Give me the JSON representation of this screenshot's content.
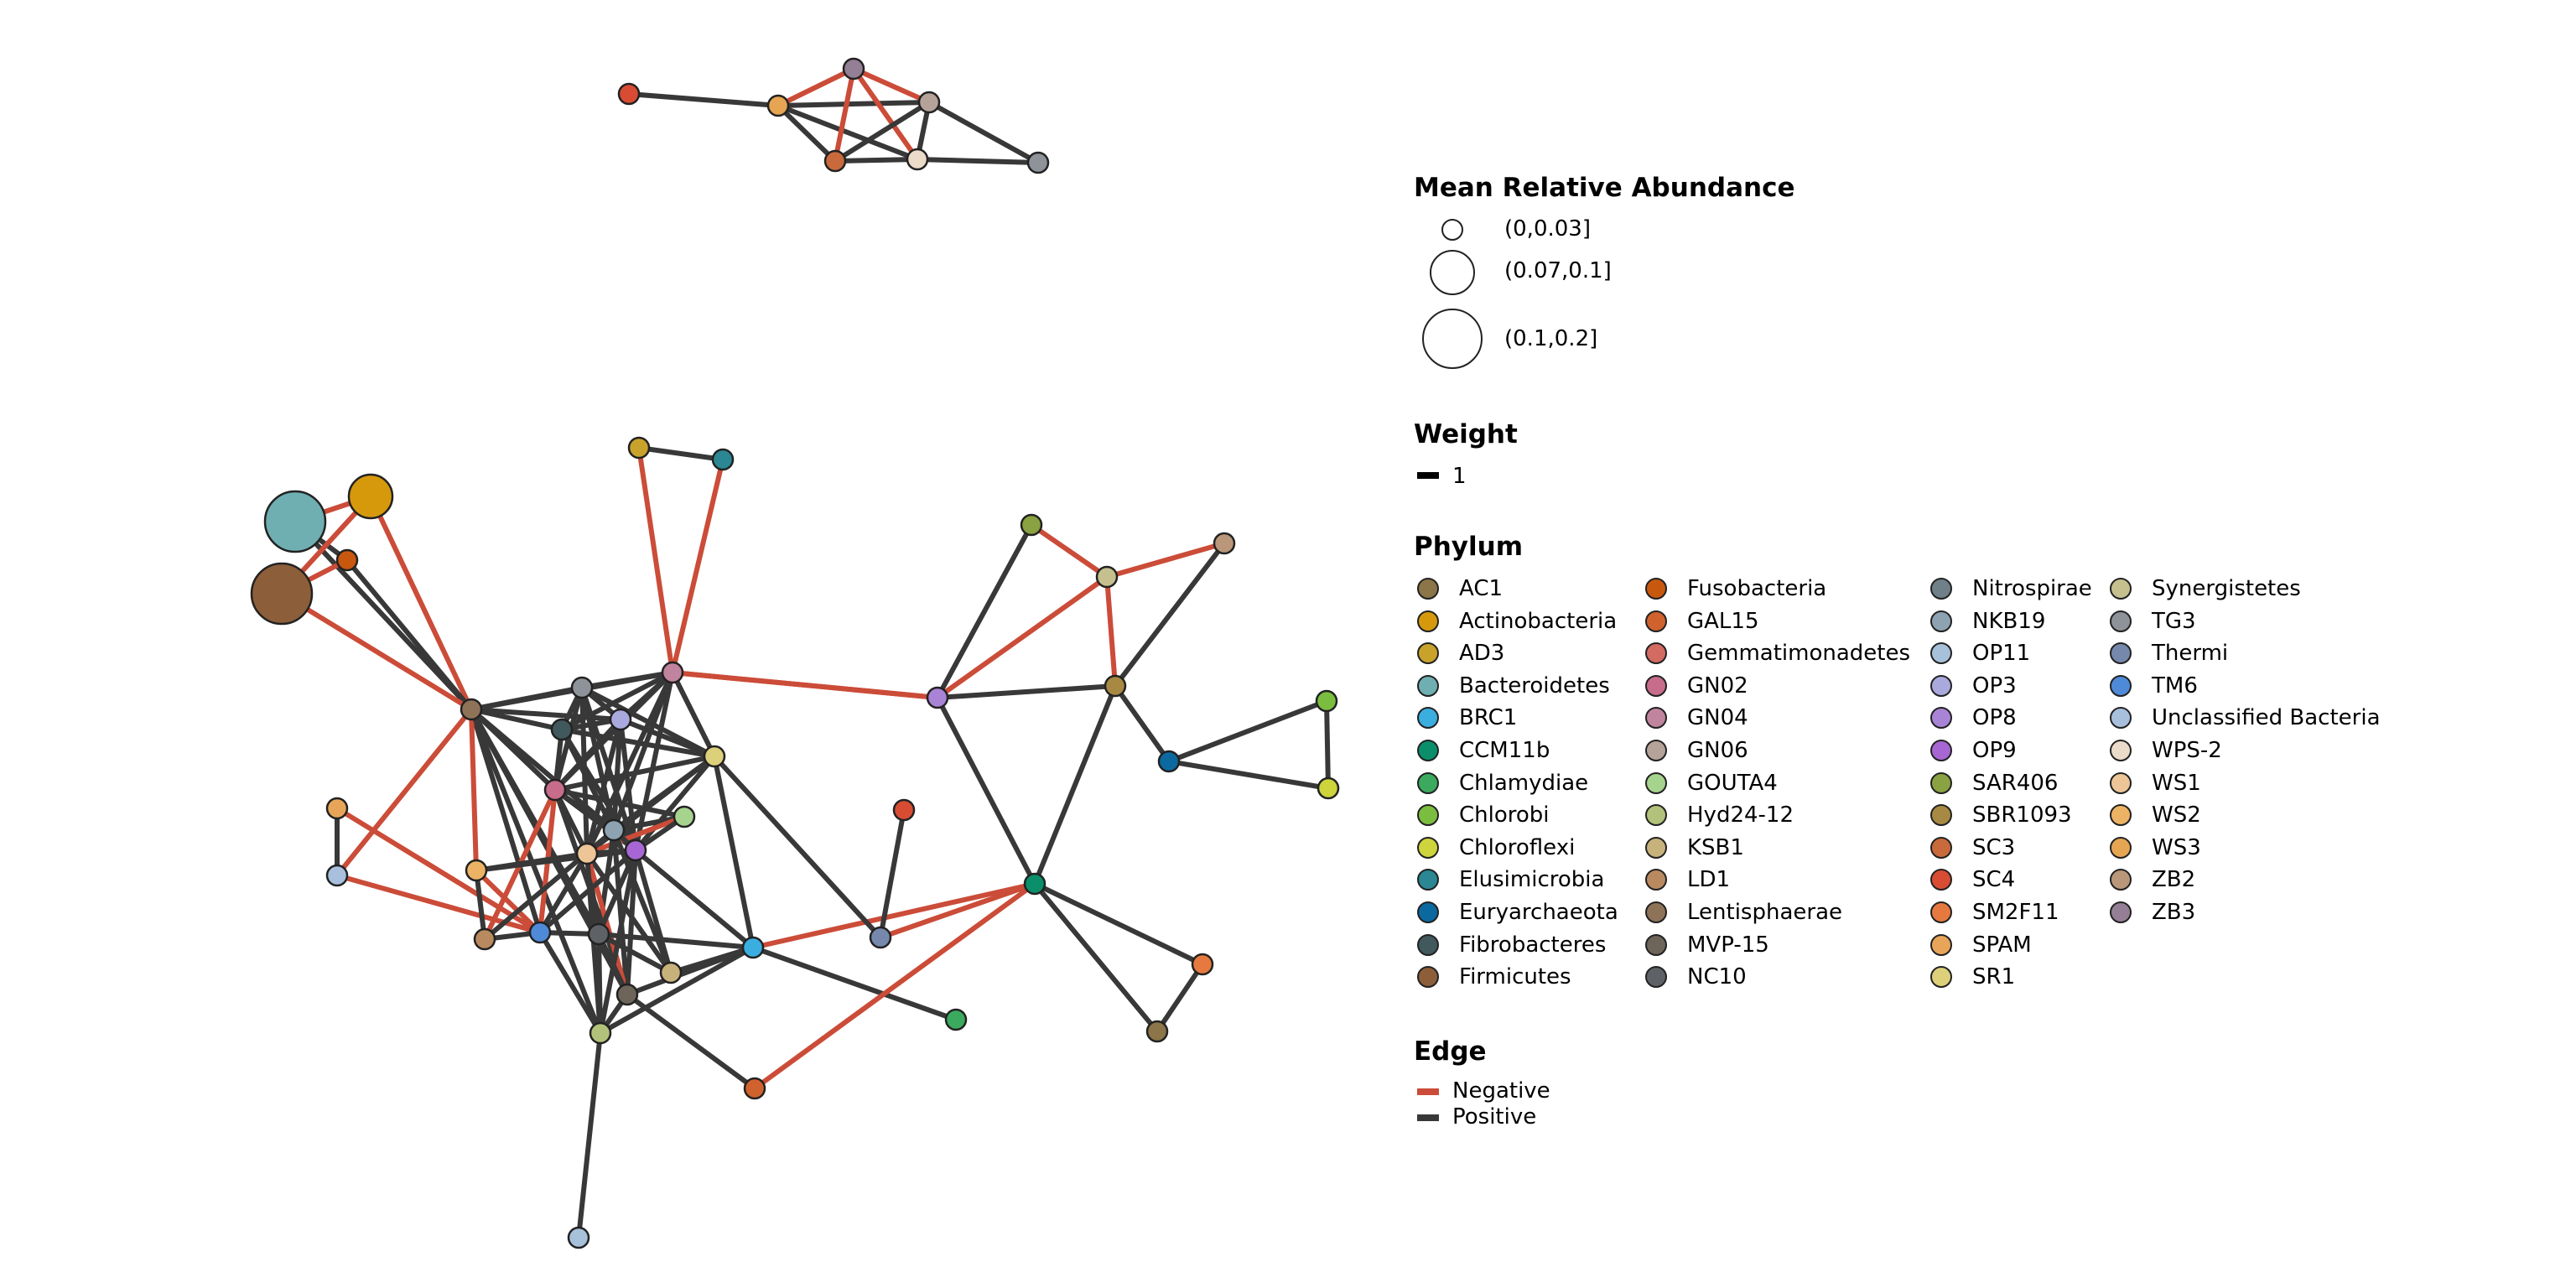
{
  "legend": {
    "abundance": {
      "title": "Mean Relative Abundance",
      "items": [
        "(0,0.03]",
        "(0.07,0.1]",
        "(0.1,0.2]"
      ]
    },
    "weight": {
      "title": "Weight",
      "items": [
        "1"
      ]
    },
    "phylum": {
      "title": "Phylum",
      "items": [
        {
          "name": "AC1",
          "color": "#8B7549"
        },
        {
          "name": "Actinobacteria",
          "color": "#D7990C"
        },
        {
          "name": "AD3",
          "color": "#C9A22C"
        },
        {
          "name": "Bacteroidetes",
          "color": "#6FAFB2"
        },
        {
          "name": "BRC1",
          "color": "#3BAEE0"
        },
        {
          "name": "CCM11b",
          "color": "#0A8F6A"
        },
        {
          "name": "Chlamydiae",
          "color": "#3BAA5E"
        },
        {
          "name": "Chlorobi",
          "color": "#7BBE3F"
        },
        {
          "name": "Chloroflexi",
          "color": "#CDD43C"
        },
        {
          "name": "Elusimicrobia",
          "color": "#2A8793"
        },
        {
          "name": "Euryarchaeota",
          "color": "#0C69A0"
        },
        {
          "name": "Fibrobacteres",
          "color": "#41585C"
        },
        {
          "name": "Firmicutes",
          "color": "#8D5E3A"
        },
        {
          "name": "Fusobacteria",
          "color": "#C9580F"
        },
        {
          "name": "GAL15",
          "color": "#D0622D"
        },
        {
          "name": "Gemmatimonadetes",
          "color": "#D36B63"
        },
        {
          "name": "GN02",
          "color": "#C76C8A"
        },
        {
          "name": "GN04",
          "color": "#C0849E"
        },
        {
          "name": "GN06",
          "color": "#B5A39A"
        },
        {
          "name": "GOUTA4",
          "color": "#A6D48E"
        },
        {
          "name": "Hyd24-12",
          "color": "#B2C27A"
        },
        {
          "name": "KSB1",
          "color": "#C8B27C"
        },
        {
          "name": "LD1",
          "color": "#B98A5F"
        },
        {
          "name": "Lentisphaerae",
          "color": "#8E7358"
        },
        {
          "name": "MVP-15",
          "color": "#6D655A"
        },
        {
          "name": "NC10",
          "color": "#5E6266"
        },
        {
          "name": "Nitrospirae",
          "color": "#6F8088"
        },
        {
          "name": "NKB19",
          "color": "#8EA3B2"
        },
        {
          "name": "OP11",
          "color": "#A7C1DA"
        },
        {
          "name": "OP3",
          "color": "#A9A9DD"
        },
        {
          "name": "OP8",
          "color": "#A883D6"
        },
        {
          "name": "OP9",
          "color": "#A766D4"
        },
        {
          "name": "SAR406",
          "color": "#8AA241"
        },
        {
          "name": "SBR1093",
          "color": "#A88944"
        },
        {
          "name": "SC3",
          "color": "#C96A3C"
        },
        {
          "name": "SC4",
          "color": "#D84C33"
        },
        {
          "name": "SM2F11",
          "color": "#E5793F"
        },
        {
          "name": "SPAM",
          "color": "#E8A559"
        },
        {
          "name": "SR1",
          "color": "#DCD07A"
        },
        {
          "name": "Synergistetes",
          "color": "#C6C08F"
        },
        {
          "name": "TG3",
          "color": "#8E939A"
        },
        {
          "name": "Thermi",
          "color": "#7688AB"
        },
        {
          "name": "TM6",
          "color": "#4E8AD8"
        },
        {
          "name": "Unclassified Bacteria",
          "color": "#A8C0DE"
        },
        {
          "name": "WPS-2",
          "color": "#EADCC9"
        },
        {
          "name": "WS1",
          "color": "#EDC597"
        },
        {
          "name": "WS2",
          "color": "#EDB365"
        },
        {
          "name": "WS3",
          "color": "#E6A553"
        },
        {
          "name": "ZB2",
          "color": "#BA977A"
        },
        {
          "name": "ZB3",
          "color": "#957F96"
        }
      ]
    },
    "edge": {
      "title": "Edge",
      "items": [
        {
          "name": "Negative",
          "color": "#CB4C38"
        },
        {
          "name": "Positive",
          "color": "#383838"
        }
      ]
    }
  },
  "network": {
    "colors": {
      "positive": "#383838",
      "negative": "#CB4C38"
    },
    "nodes": [
      {
        "id": "n1",
        "phylum": "SC4",
        "abundance": 1
      },
      {
        "id": "n2",
        "phylum": "WS3",
        "abundance": 1
      },
      {
        "id": "n3",
        "phylum": "ZB3",
        "abundance": 1
      },
      {
        "id": "n4",
        "phylum": "GN06",
        "abundance": 1
      },
      {
        "id": "n5",
        "phylum": "SC3",
        "abundance": 1
      },
      {
        "id": "n6",
        "phylum": "WPS-2",
        "abundance": 1
      },
      {
        "id": "n7",
        "phylum": "TG3",
        "abundance": 1
      },
      {
        "id": "bact",
        "phylum": "Bacteroidetes",
        "abundance": 3
      },
      {
        "id": "actino",
        "phylum": "Actinobacteria",
        "abundance": 2
      },
      {
        "id": "fuso",
        "phylum": "Fusobacteria",
        "abundance": 1
      },
      {
        "id": "firm",
        "phylum": "Firmicutes",
        "abundance": 3
      },
      {
        "id": "ad3",
        "phylum": "AD3",
        "abundance": 1
      },
      {
        "id": "elusi",
        "phylum": "Elusimicrobia",
        "abundance": 1
      },
      {
        "id": "lenti",
        "phylum": "Lentisphaerae",
        "abundance": 1
      },
      {
        "id": "tg3b",
        "phylum": "TG3",
        "abundance": 1
      },
      {
        "id": "gn04",
        "phylum": "GN04",
        "abundance": 1
      },
      {
        "id": "fibro",
        "phylum": "Fibrobacteres",
        "abundance": 1
      },
      {
        "id": "op3",
        "phylum": "OP3",
        "abundance": 1
      },
      {
        "id": "sr1",
        "phylum": "SR1",
        "abundance": 1
      },
      {
        "id": "gn02",
        "phylum": "GN02",
        "abundance": 1
      },
      {
        "id": "gouta4",
        "phylum": "GOUTA4",
        "abundance": 1
      },
      {
        "id": "nkb19",
        "phylum": "NKB19",
        "abundance": 1
      },
      {
        "id": "ws1",
        "phylum": "WS1",
        "abundance": 1
      },
      {
        "id": "op9",
        "phylum": "OP9",
        "abundance": 1
      },
      {
        "id": "ws2",
        "phylum": "WS2",
        "abundance": 1
      },
      {
        "id": "op11",
        "phylum": "Unclassified Bacteria",
        "abundance": 1
      },
      {
        "id": "spam",
        "phylum": "SPAM",
        "abundance": 1
      },
      {
        "id": "ld1",
        "phylum": "LD1",
        "abundance": 1
      },
      {
        "id": "tm6",
        "phylum": "TM6",
        "abundance": 1
      },
      {
        "id": "nc10",
        "phylum": "NC10",
        "abundance": 1
      },
      {
        "id": "ksb1",
        "phylum": "KSB1",
        "abundance": 1
      },
      {
        "id": "mvp15",
        "phylum": "MVP-15",
        "abundance": 1
      },
      {
        "id": "hyd",
        "phylum": "Hyd24-12",
        "abundance": 1
      },
      {
        "id": "op11b",
        "phylum": "OP11",
        "abundance": 1
      },
      {
        "id": "brc1",
        "phylum": "BRC1",
        "abundance": 1
      },
      {
        "id": "gal15",
        "phylum": "GAL15",
        "abundance": 1
      },
      {
        "id": "thermi",
        "phylum": "Thermi",
        "abundance": 1
      },
      {
        "id": "sc4b",
        "phylum": "SC4",
        "abundance": 1
      },
      {
        "id": "chlam",
        "phylum": "Chlamydiae",
        "abundance": 1
      },
      {
        "id": "op8",
        "phylum": "OP8",
        "abundance": 1
      },
      {
        "id": "sar406",
        "phylum": "SAR406",
        "abundance": 1
      },
      {
        "id": "syn",
        "phylum": "Synergistetes",
        "abundance": 1
      },
      {
        "id": "zb2",
        "phylum": "ZB2",
        "abundance": 1
      },
      {
        "id": "sbr",
        "phylum": "SBR1093",
        "abundance": 1
      },
      {
        "id": "chlorobi",
        "phylum": "Chlorobi",
        "abundance": 1
      },
      {
        "id": "eury",
        "phylum": "Euryarchaeota",
        "abundance": 1
      },
      {
        "id": "chloro",
        "phylum": "Chloroflexi",
        "abundance": 1
      },
      {
        "id": "ccm",
        "phylum": "CCM11b",
        "abundance": 1
      },
      {
        "id": "sm2",
        "phylum": "SM2F11",
        "abundance": 1
      },
      {
        "id": "ac1",
        "phylum": "AC1",
        "abundance": 1
      }
    ],
    "edges": [
      {
        "s": "n1",
        "t": "n2",
        "sign": "+"
      },
      {
        "s": "n2",
        "t": "n3",
        "sign": "-"
      },
      {
        "s": "n2",
        "t": "n4",
        "sign": "+"
      },
      {
        "s": "n2",
        "t": "n5",
        "sign": "+"
      },
      {
        "s": "n2",
        "t": "n6",
        "sign": "+"
      },
      {
        "s": "n3",
        "t": "n4",
        "sign": "-"
      },
      {
        "s": "n3",
        "t": "n5",
        "sign": "-"
      },
      {
        "s": "n3",
        "t": "n6",
        "sign": "-"
      },
      {
        "s": "n4",
        "t": "n5",
        "sign": "+"
      },
      {
        "s": "n4",
        "t": "n6",
        "sign": "+"
      },
      {
        "s": "n4",
        "t": "n7",
        "sign": "+"
      },
      {
        "s": "n5",
        "t": "n6",
        "sign": "+"
      },
      {
        "s": "n6",
        "t": "n7",
        "sign": "+"
      },
      {
        "s": "bact",
        "t": "actino",
        "sign": "-"
      },
      {
        "s": "bact",
        "t": "fuso",
        "sign": "+"
      },
      {
        "s": "bact",
        "t": "lenti",
        "sign": "+"
      },
      {
        "s": "actino",
        "t": "firm",
        "sign": "-"
      },
      {
        "s": "actino",
        "t": "lenti",
        "sign": "-"
      },
      {
        "s": "fuso",
        "t": "firm",
        "sign": "-"
      },
      {
        "s": "fuso",
        "t": "lenti",
        "sign": "+"
      },
      {
        "s": "firm",
        "t": "lenti",
        "sign": "-"
      },
      {
        "s": "ad3",
        "t": "elusi",
        "sign": "+"
      },
      {
        "s": "ad3",
        "t": "gn04",
        "sign": "-"
      },
      {
        "s": "elusi",
        "t": "gn04",
        "sign": "-"
      },
      {
        "s": "lenti",
        "t": "tg3b",
        "sign": "+"
      },
      {
        "s": "lenti",
        "t": "fibro",
        "sign": "+"
      },
      {
        "s": "lenti",
        "t": "op3",
        "sign": "+"
      },
      {
        "s": "lenti",
        "t": "gn02",
        "sign": "+"
      },
      {
        "s": "lenti",
        "t": "nkb19",
        "sign": "+"
      },
      {
        "s": "lenti",
        "t": "tm6",
        "sign": "+"
      },
      {
        "s": "lenti",
        "t": "nc10",
        "sign": "+"
      },
      {
        "s": "lenti",
        "t": "mvp15",
        "sign": "+"
      },
      {
        "s": "lenti",
        "t": "ws2",
        "sign": "-"
      },
      {
        "s": "lenti",
        "t": "op11",
        "sign": "-"
      },
      {
        "s": "lenti",
        "t": "hyd",
        "sign": "+"
      },
      {
        "s": "lenti",
        "t": "gn04",
        "sign": "+"
      },
      {
        "s": "spam",
        "t": "op11",
        "sign": "+"
      },
      {
        "s": "spam",
        "t": "tm6",
        "sign": "-"
      },
      {
        "s": "op11",
        "t": "tm6",
        "sign": "-"
      },
      {
        "s": "tg3b",
        "t": "gn04",
        "sign": "+"
      },
      {
        "s": "tg3b",
        "t": "fibro",
        "sign": "+"
      },
      {
        "s": "tg3b",
        "t": "op3",
        "sign": "+"
      },
      {
        "s": "tg3b",
        "t": "gn02",
        "sign": "+"
      },
      {
        "s": "tg3b",
        "t": "nkb19",
        "sign": "+"
      },
      {
        "s": "tg3b",
        "t": "ws1",
        "sign": "+"
      },
      {
        "s": "tg3b",
        "t": "op9",
        "sign": "+"
      },
      {
        "s": "tg3b",
        "t": "sr1",
        "sign": "+"
      },
      {
        "s": "gn04",
        "t": "fibro",
        "sign": "+"
      },
      {
        "s": "gn04",
        "t": "op3",
        "sign": "+"
      },
      {
        "s": "gn04",
        "t": "sr1",
        "sign": "+"
      },
      {
        "s": "gn04",
        "t": "gn02",
        "sign": "+"
      },
      {
        "s": "gn04",
        "t": "nkb19",
        "sign": "+"
      },
      {
        "s": "gn04",
        "t": "ws1",
        "sign": "+"
      },
      {
        "s": "gn04",
        "t": "op9",
        "sign": "+"
      },
      {
        "s": "gn04",
        "t": "op8",
        "sign": "-"
      },
      {
        "s": "fibro",
        "t": "op3",
        "sign": "+"
      },
      {
        "s": "fibro",
        "t": "gn02",
        "sign": "+"
      },
      {
        "s": "fibro",
        "t": "nkb19",
        "sign": "+"
      },
      {
        "s": "fibro",
        "t": "op9",
        "sign": "+"
      },
      {
        "s": "fibro",
        "t": "sr1",
        "sign": "+"
      },
      {
        "s": "op3",
        "t": "sr1",
        "sign": "+"
      },
      {
        "s": "op3",
        "t": "gn02",
        "sign": "+"
      },
      {
        "s": "op3",
        "t": "nkb19",
        "sign": "+"
      },
      {
        "s": "op3",
        "t": "ws1",
        "sign": "+"
      },
      {
        "s": "op3",
        "t": "op9",
        "sign": "+"
      },
      {
        "s": "sr1",
        "t": "gn02",
        "sign": "+"
      },
      {
        "s": "sr1",
        "t": "nkb19",
        "sign": "+"
      },
      {
        "s": "sr1",
        "t": "op9",
        "sign": "+"
      },
      {
        "s": "sr1",
        "t": "brc1",
        "sign": "+"
      },
      {
        "s": "sr1",
        "t": "ws1",
        "sign": "+"
      },
      {
        "s": "gn02",
        "t": "gouta4",
        "sign": "+"
      },
      {
        "s": "gn02",
        "t": "nkb19",
        "sign": "+"
      },
      {
        "s": "gn02",
        "t": "ws1",
        "sign": "+"
      },
      {
        "s": "gn02",
        "t": "op9",
        "sign": "+"
      },
      {
        "s": "gn02",
        "t": "ld1",
        "sign": "-"
      },
      {
        "s": "gn02",
        "t": "tm6",
        "sign": "-"
      },
      {
        "s": "gn02",
        "t": "mvp15",
        "sign": "+"
      },
      {
        "s": "gouta4",
        "t": "nkb19",
        "sign": "+"
      },
      {
        "s": "gouta4",
        "t": "ws1",
        "sign": "-"
      },
      {
        "s": "gouta4",
        "t": "op9",
        "sign": "+"
      },
      {
        "s": "nkb19",
        "t": "ws1",
        "sign": "+"
      },
      {
        "s": "nkb19",
        "t": "op9",
        "sign": "+"
      },
      {
        "s": "nkb19",
        "t": "nc10",
        "sign": "+"
      },
      {
        "s": "nkb19",
        "t": "ksb1",
        "sign": "+"
      },
      {
        "s": "nkb19",
        "t": "mvp15",
        "sign": "+"
      },
      {
        "s": "ws1",
        "t": "op9",
        "sign": "+"
      },
      {
        "s": "ws1",
        "t": "ws2",
        "sign": "+"
      },
      {
        "s": "ws1",
        "t": "tm6",
        "sign": "+"
      },
      {
        "s": "ws1",
        "t": "nc10",
        "sign": "+"
      },
      {
        "s": "ws1",
        "t": "ksb1",
        "sign": "+"
      },
      {
        "s": "ws1",
        "t": "mvp15",
        "sign": "-"
      },
      {
        "s": "ws1",
        "t": "hyd",
        "sign": "+"
      },
      {
        "s": "op9",
        "t": "ws2",
        "sign": "+"
      },
      {
        "s": "op9",
        "t": "tm6",
        "sign": "+"
      },
      {
        "s": "op9",
        "t": "nc10",
        "sign": "+"
      },
      {
        "s": "op9",
        "t": "ksb1",
        "sign": "+"
      },
      {
        "s": "op9",
        "t": "mvp15",
        "sign": "+"
      },
      {
        "s": "op9",
        "t": "hyd",
        "sign": "+"
      },
      {
        "s": "op9",
        "t": "brc1",
        "sign": "+"
      },
      {
        "s": "ws2",
        "t": "ld1",
        "sign": "+"
      },
      {
        "s": "ws2",
        "t": "tm6",
        "sign": "-"
      },
      {
        "s": "ld1",
        "t": "tm6",
        "sign": "+"
      },
      {
        "s": "ld1",
        "t": "nkb19",
        "sign": "+"
      },
      {
        "s": "tm6",
        "t": "nc10",
        "sign": "+"
      },
      {
        "s": "tm6",
        "t": "hyd",
        "sign": "+"
      },
      {
        "s": "nc10",
        "t": "brc1",
        "sign": "+"
      },
      {
        "s": "nc10",
        "t": "ksb1",
        "sign": "+"
      },
      {
        "s": "nc10",
        "t": "mvp15",
        "sign": "+"
      },
      {
        "s": "nc10",
        "t": "hyd",
        "sign": "+"
      },
      {
        "s": "ksb1",
        "t": "brc1",
        "sign": "+"
      },
      {
        "s": "mvp15",
        "t": "brc1",
        "sign": "+"
      },
      {
        "s": "mvp15",
        "t": "hyd",
        "sign": "+"
      },
      {
        "s": "mvp15",
        "t": "gal15",
        "sign": "+"
      },
      {
        "s": "hyd",
        "t": "brc1",
        "sign": "+"
      },
      {
        "s": "hyd",
        "t": "op11b",
        "sign": "+"
      },
      {
        "s": "brc1",
        "t": "ccm",
        "sign": "-"
      },
      {
        "s": "brc1",
        "t": "chlam",
        "sign": "+"
      },
      {
        "s": "gn04",
        "t": "op8",
        "sign": "-"
      },
      {
        "s": "op8",
        "t": "ccm",
        "sign": "+"
      },
      {
        "s": "op8",
        "t": "sar406",
        "sign": "+"
      },
      {
        "s": "op8",
        "t": "syn",
        "sign": "-"
      },
      {
        "s": "op8",
        "t": "sbr",
        "sign": "+"
      },
      {
        "s": "sr1",
        "t": "thermi",
        "sign": "+"
      },
      {
        "s": "sc4b",
        "t": "thermi",
        "sign": "+"
      },
      {
        "s": "thermi",
        "t": "ccm",
        "sign": "-"
      },
      {
        "s": "sar406",
        "t": "syn",
        "sign": "-"
      },
      {
        "s": "syn",
        "t": "zb2",
        "sign": "-"
      },
      {
        "s": "syn",
        "t": "sbr",
        "sign": "-"
      },
      {
        "s": "zb2",
        "t": "sbr",
        "sign": "+"
      },
      {
        "s": "sbr",
        "t": "eury",
        "sign": "+"
      },
      {
        "s": "sbr",
        "t": "ccm",
        "sign": "+"
      },
      {
        "s": "eury",
        "t": "chlorobi",
        "sign": "+"
      },
      {
        "s": "eury",
        "t": "chloro",
        "sign": "+"
      },
      {
        "s": "chlorobi",
        "t": "chloro",
        "sign": "+"
      },
      {
        "s": "ccm",
        "t": "gal15",
        "sign": "-"
      },
      {
        "s": "ccm",
        "t": "sm2",
        "sign": "+"
      },
      {
        "s": "ccm",
        "t": "ac1",
        "sign": "+"
      },
      {
        "s": "sm2",
        "t": "ac1",
        "sign": "+"
      }
    ]
  }
}
